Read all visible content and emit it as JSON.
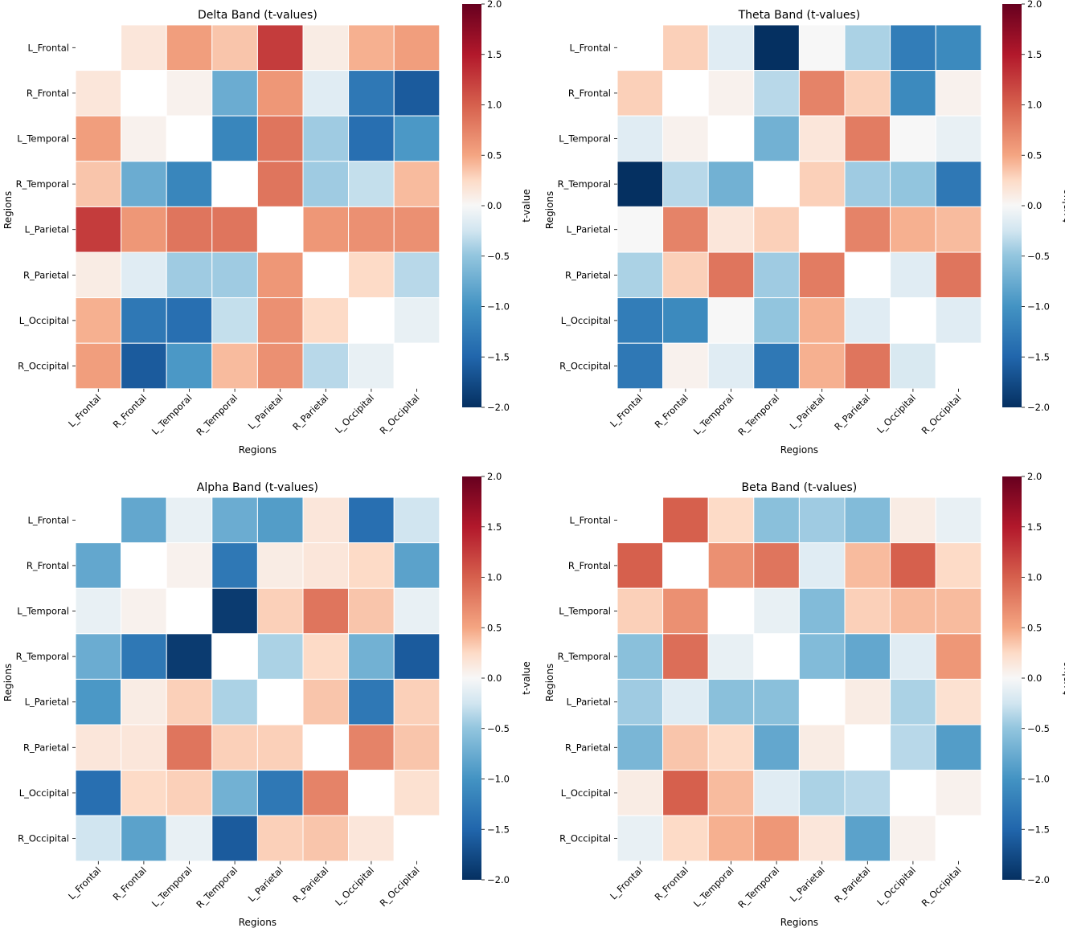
{
  "chart_data": [
    {
      "type": "heatmap",
      "title": "Delta Band (t-values)",
      "xlabel": "Regions",
      "ylabel": "Regions",
      "colorbar_label": "t-value",
      "vmin": -2.0,
      "vmax": 2.0,
      "colorbar_ticks": [
        "2.0",
        "1.5",
        "1.0",
        "0.5",
        "0.0",
        "−0.5",
        "−1.0",
        "−1.5",
        "−2.0"
      ],
      "colorbar_tick_values": [
        2.0,
        1.5,
        1.0,
        0.5,
        0.0,
        -0.5,
        -1.0,
        -1.5,
        -2.0
      ],
      "regions": [
        "L_Frontal",
        "R_Frontal",
        "L_Temporal",
        "R_Temporal",
        "L_Parietal",
        "R_Parietal",
        "L_Occipital",
        "R_Occipital"
      ],
      "values": [
        [
          null,
          0.15,
          0.55,
          0.35,
          1.25,
          0.1,
          0.45,
          0.55
        ],
        [
          0.15,
          null,
          0.05,
          -0.75,
          0.6,
          -0.15,
          -1.3,
          -1.6
        ],
        [
          0.55,
          0.05,
          null,
          -1.15,
          0.85,
          -0.45,
          -1.4,
          -0.95
        ],
        [
          0.35,
          -0.75,
          -1.15,
          null,
          0.85,
          -0.45,
          -0.3,
          0.4
        ],
        [
          1.25,
          0.6,
          0.85,
          0.85,
          null,
          0.6,
          0.65,
          0.65
        ],
        [
          0.1,
          -0.15,
          -0.45,
          -0.45,
          0.6,
          null,
          0.25,
          -0.35
        ],
        [
          0.45,
          -1.3,
          -1.4,
          -0.3,
          0.65,
          0.25,
          null,
          -0.1
        ],
        [
          0.55,
          -1.6,
          -0.95,
          0.4,
          0.65,
          -0.35,
          -0.1,
          null
        ]
      ]
    },
    {
      "type": "heatmap",
      "title": "Theta Band (t-values)",
      "xlabel": "Regions",
      "ylabel": "Regions",
      "colorbar_label": "t-value",
      "vmin": -2.0,
      "vmax": 2.0,
      "colorbar_ticks": [
        "2.0",
        "1.5",
        "1.0",
        "0.5",
        "0.0",
        "−0.5",
        "−1.0",
        "−1.5",
        "−2.0"
      ],
      "colorbar_tick_values": [
        2.0,
        1.5,
        1.0,
        0.5,
        0.0,
        -0.5,
        -1.0,
        -1.5,
        -2.0
      ],
      "regions": [
        "L_Frontal",
        "R_Frontal",
        "L_Temporal",
        "R_Temporal",
        "L_Parietal",
        "R_Parietal",
        "L_Occipital",
        "R_Occipital"
      ],
      "values": [
        [
          null,
          0.3,
          -0.15,
          -2.0,
          0.0,
          -0.4,
          -1.25,
          -1.1
        ],
        [
          0.3,
          null,
          0.05,
          -0.35,
          0.75,
          0.3,
          -1.1,
          0.05
        ],
        [
          -0.15,
          0.05,
          null,
          -0.7,
          0.15,
          0.8,
          0.0,
          -0.1
        ],
        [
          -2.0,
          -0.35,
          -0.7,
          null,
          0.3,
          -0.45,
          -0.5,
          -1.3
        ],
        [
          0.0,
          0.75,
          0.15,
          0.3,
          null,
          0.75,
          0.45,
          0.4
        ],
        [
          -0.4,
          0.3,
          0.85,
          -0.45,
          0.8,
          null,
          -0.15,
          0.85
        ],
        [
          -1.25,
          -1.1,
          0.0,
          -0.5,
          0.45,
          -0.15,
          null,
          -0.15
        ],
        [
          -1.3,
          0.05,
          -0.15,
          -1.3,
          0.45,
          0.85,
          -0.2,
          null
        ]
      ]
    },
    {
      "type": "heatmap",
      "title": "Alpha Band (t-values)",
      "xlabel": "Regions",
      "ylabel": "Regions",
      "colorbar_label": "t-value",
      "vmin": -2.0,
      "vmax": 2.0,
      "colorbar_ticks": [
        "2.0",
        "1.5",
        "1.0",
        "0.5",
        "0.0",
        "−0.5",
        "−1.0",
        "−1.5",
        "−2.0"
      ],
      "colorbar_tick_values": [
        2.0,
        1.5,
        1.0,
        0.5,
        0.0,
        -0.5,
        -1.0,
        -1.5,
        -2.0
      ],
      "regions": [
        "L_Frontal",
        "R_Frontal",
        "L_Temporal",
        "R_Temporal",
        "L_Parietal",
        "R_Parietal",
        "L_Occipital",
        "R_Occipital"
      ],
      "values": [
        [
          null,
          -0.8,
          -0.1,
          -0.75,
          -0.9,
          0.15,
          -1.4,
          -0.25
        ],
        [
          -0.8,
          null,
          0.05,
          -1.3,
          0.1,
          0.15,
          0.25,
          -0.85
        ],
        [
          -0.1,
          0.05,
          null,
          -1.9,
          0.3,
          0.85,
          0.35,
          -0.1
        ],
        [
          -0.75,
          -1.3,
          -1.9,
          null,
          -0.4,
          0.25,
          -0.7,
          -1.6
        ],
        [
          -0.95,
          0.1,
          0.3,
          -0.4,
          null,
          0.35,
          -1.3,
          0.3
        ],
        [
          0.15,
          0.15,
          0.85,
          0.3,
          0.3,
          null,
          0.75,
          0.35
        ],
        [
          -1.4,
          0.25,
          0.3,
          -0.7,
          -1.3,
          0.75,
          null,
          0.2
        ],
        [
          -0.25,
          -0.85,
          -0.1,
          -1.6,
          0.3,
          0.35,
          0.15,
          null
        ]
      ]
    },
    {
      "type": "heatmap",
      "title": "Beta Band (t-values)",
      "xlabel": "Regions",
      "ylabel": "Regions",
      "colorbar_label": "t-value",
      "vmin": -2.0,
      "vmax": 2.0,
      "colorbar_ticks": [
        "2.0",
        "1.5",
        "1.0",
        "0.5",
        "0.0",
        "−0.5",
        "−1.0",
        "−1.5",
        "−2.0"
      ],
      "colorbar_tick_values": [
        2.0,
        1.5,
        1.0,
        0.5,
        0.0,
        -0.5,
        -1.0,
        -1.5,
        -2.0
      ],
      "regions": [
        "L_Frontal",
        "R_Frontal",
        "L_Temporal",
        "R_Temporal",
        "L_Parietal",
        "R_Parietal",
        "L_Occipital",
        "R_Occipital"
      ],
      "values": [
        [
          null,
          1.0,
          0.25,
          -0.55,
          -0.45,
          -0.6,
          0.1,
          -0.1
        ],
        [
          1.0,
          null,
          0.65,
          0.85,
          -0.15,
          0.4,
          1.0,
          0.25
        ],
        [
          0.3,
          0.65,
          null,
          -0.1,
          -0.6,
          0.3,
          0.4,
          0.4
        ],
        [
          -0.55,
          0.9,
          -0.1,
          null,
          -0.6,
          -0.8,
          -0.15,
          0.6
        ],
        [
          -0.45,
          -0.15,
          -0.55,
          -0.55,
          null,
          0.1,
          -0.4,
          0.2
        ],
        [
          -0.65,
          0.35,
          0.25,
          -0.8,
          0.1,
          null,
          -0.35,
          -0.9
        ],
        [
          0.1,
          1.0,
          0.4,
          -0.15,
          -0.4,
          -0.35,
          null,
          0.05
        ],
        [
          -0.1,
          0.25,
          0.45,
          0.6,
          0.15,
          -0.85,
          0.05,
          null
        ]
      ]
    }
  ]
}
